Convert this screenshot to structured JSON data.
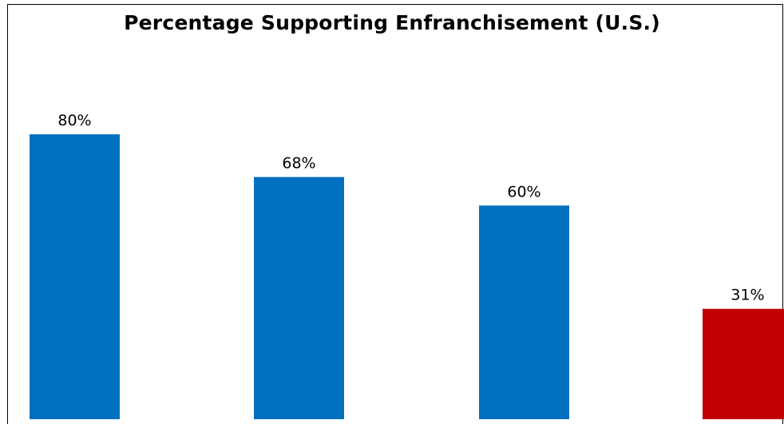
{
  "chart_data": {
    "type": "bar",
    "title": "Percentage Supporting Enfranchisement (U.S.)",
    "xlabel": "",
    "ylabel": "",
    "categories": [
      "",
      "",
      "",
      ""
    ],
    "values": [
      80,
      68,
      60,
      31
    ],
    "value_labels": [
      "80%",
      "68%",
      "60%",
      "31%"
    ],
    "ylim": [
      0,
      100
    ],
    "grid": false,
    "legend": "none",
    "colors": [
      "#0070C0",
      "#0070C0",
      "#0070C0",
      "#C00000"
    ]
  }
}
